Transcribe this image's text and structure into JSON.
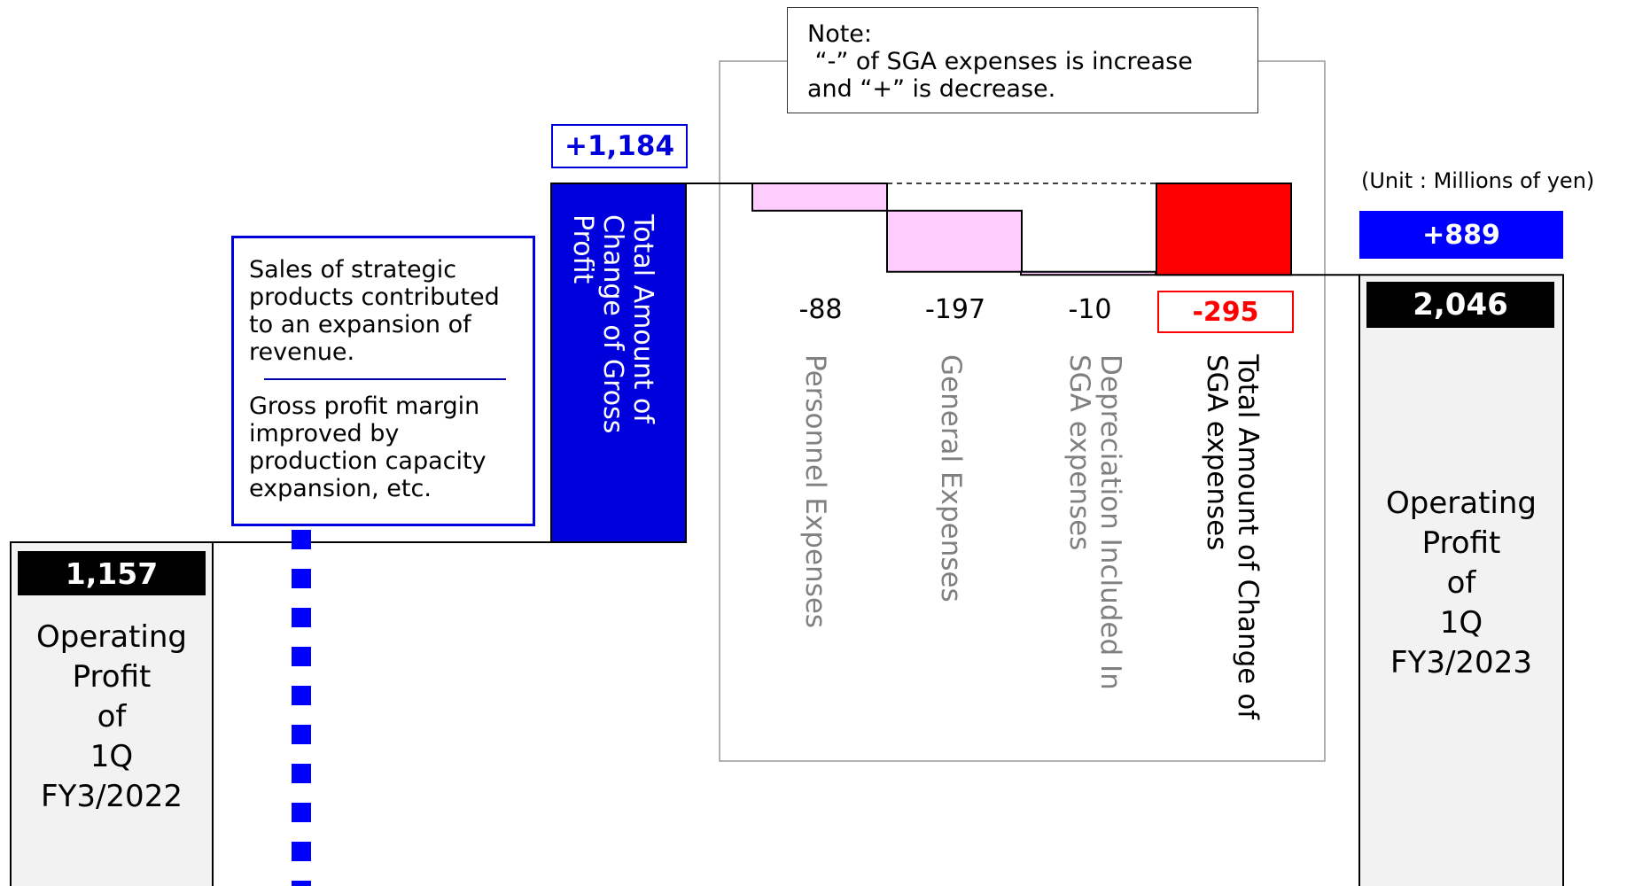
{
  "chart_data": {
    "type": "waterfall",
    "unit_label": "(Unit : Millions of yen)",
    "steps": [
      {
        "key": "start",
        "value": 1157,
        "value_label": "1,157",
        "label_lines": [
          "Operating",
          "Profit",
          "of",
          "1Q",
          "FY3/2022"
        ]
      },
      {
        "key": "gross",
        "value": 1184,
        "value_label": "+1,184",
        "label": "Total Amount of Change of Gross Profit",
        "color": "#0000dd"
      },
      {
        "key": "personnel",
        "value": -88,
        "value_label": "-88",
        "label": "Personnel Expenses",
        "color": "#ffccff"
      },
      {
        "key": "general",
        "value": -197,
        "value_label": "-197",
        "label": "General Expenses",
        "color": "#ffccff"
      },
      {
        "key": "depreciation",
        "value": -10,
        "value_label": "-10",
        "label": "Depreciation Included In SGA expenses",
        "color": "#ffccff"
      },
      {
        "key": "sga_total",
        "value": -295,
        "value_label": "-295",
        "label": "Total Amount of Change of SGA expenses",
        "color": "#ff0000"
      },
      {
        "key": "end",
        "value": 2046,
        "value_label": "2,046",
        "label_lines": [
          "Operating",
          "Profit",
          "of",
          "1Q",
          "FY3/2023"
        ],
        "change_label": "+889"
      }
    ]
  },
  "note": {
    "line1": "Note:",
    "line2": " “-” of SGA expenses is increase",
    "line3": "and “+” is decrease."
  },
  "callout": {
    "text1": "Sales of strategic products contributed to an expansion of revenue.",
    "text2": "Gross profit margin improved by production capacity expansion, etc."
  },
  "colors": {
    "gross_blue": "#0000dd",
    "sga_pink": "#ffccff",
    "sga_red": "#ff0000",
    "change_blue": "#0000ff",
    "label_gray": "#808080",
    "box_gray": "#f2f2f2"
  }
}
